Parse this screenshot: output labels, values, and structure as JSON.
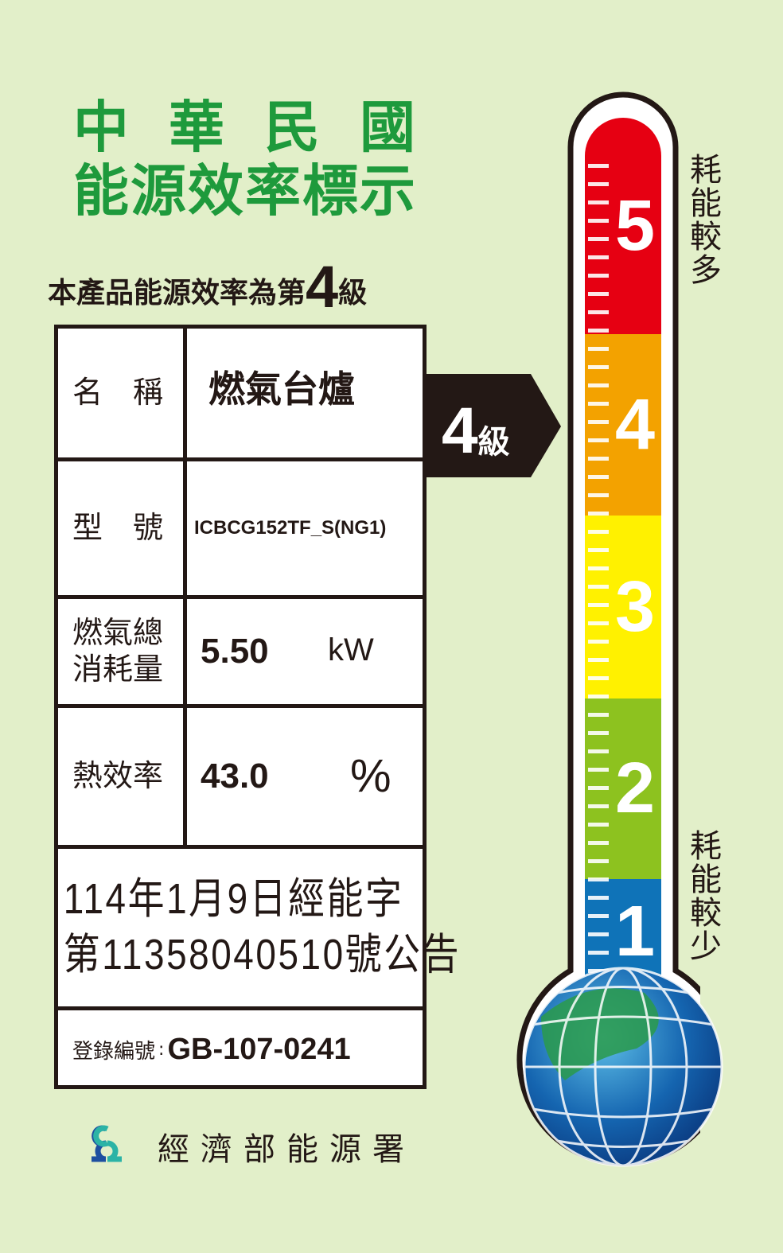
{
  "header": {
    "line1": "中華民國",
    "line2": "能源效率標示"
  },
  "rating_statement": {
    "prefix": "本產品能源效率為第",
    "grade": "4",
    "suffix": "級"
  },
  "table": {
    "name": {
      "label": "名　稱",
      "value": "燃氣台爐"
    },
    "model": {
      "label": "型　號",
      "value": "ICBCG152TF_S(NG1)"
    },
    "gas_consumption": {
      "label_line1": "燃氣總",
      "label_line2": "消耗量",
      "value": "5.50",
      "unit": "kW"
    },
    "thermal_efficiency": {
      "label": "熱效率",
      "value": "43.0",
      "unit": "%"
    },
    "announcement": {
      "line1": "114年1月9日經能字",
      "line2": "第11358040510號公告"
    },
    "registration": {
      "label": "登錄編號",
      "separator": ":",
      "value": "GB-107-0241"
    }
  },
  "grade_arrow": {
    "number": "4",
    "suffix": "級"
  },
  "thermometer": {
    "current_level": 4,
    "levels": [
      {
        "label": "5",
        "color": "#e60012"
      },
      {
        "label": "4",
        "color": "#f3a200"
      },
      {
        "label": "3",
        "color": "#fff100"
      },
      {
        "label": "2",
        "color": "#8dc21f"
      },
      {
        "label": "1",
        "color": "#0f73b8"
      }
    ],
    "top_note": "耗能較多",
    "bottom_note": "耗能較少"
  },
  "footer": {
    "agency": "經濟部能源署"
  },
  "colors": {
    "background": "#e2efc9",
    "title_green": "#1e9a3c"
  }
}
